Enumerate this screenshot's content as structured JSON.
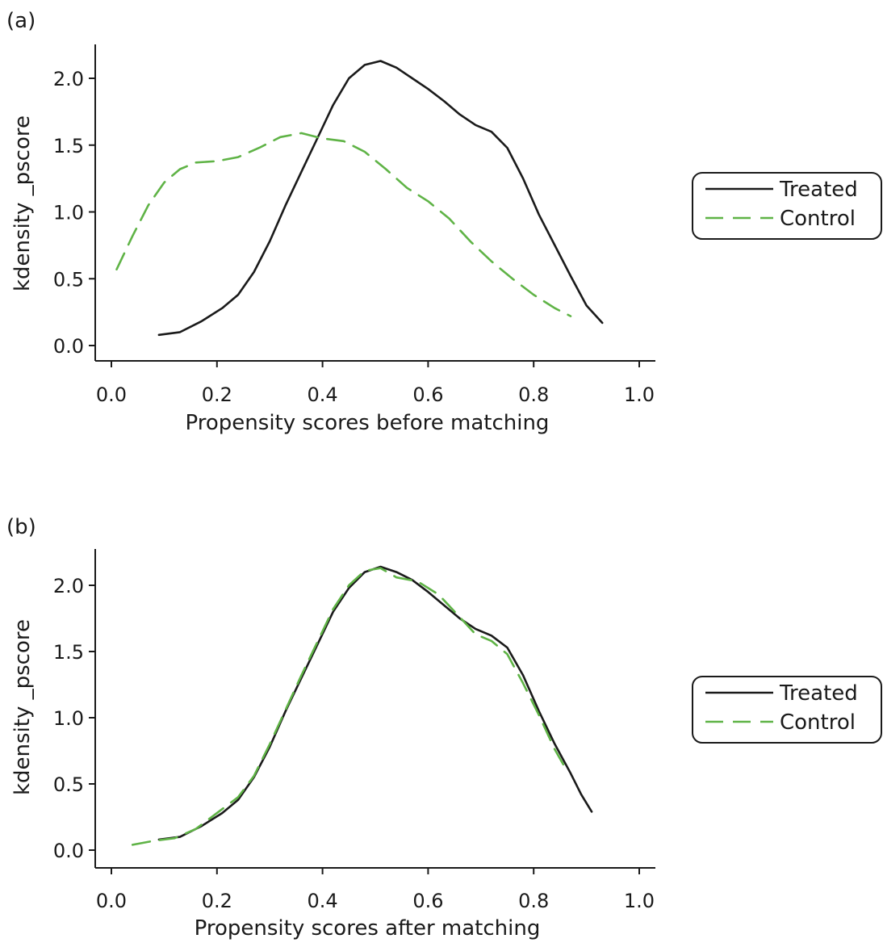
{
  "chart_data": [
    {
      "type": "line",
      "panel_label": "(a)",
      "xlabel": "Propensity scores before matching",
      "ylabel": "kdensity _pscore",
      "xlim": [
        0.0,
        1.0
      ],
      "ylim": [
        0.0,
        2.2
      ],
      "xticks": [
        "0.0",
        "0.2",
        "0.4",
        "0.6",
        "0.8",
        "1.0"
      ],
      "yticks": [
        "0.0",
        "0.5",
        "1.0",
        "1.5",
        "2.0"
      ],
      "legend_position": "right",
      "series": [
        {
          "name": "Treated",
          "color": "#1a1a1a",
          "dash": "solid",
          "points": [
            [
              0.09,
              0.08
            ],
            [
              0.13,
              0.1
            ],
            [
              0.17,
              0.18
            ],
            [
              0.21,
              0.28
            ],
            [
              0.24,
              0.38
            ],
            [
              0.27,
              0.55
            ],
            [
              0.3,
              0.78
            ],
            [
              0.33,
              1.05
            ],
            [
              0.36,
              1.3
            ],
            [
              0.39,
              1.55
            ],
            [
              0.42,
              1.8
            ],
            [
              0.45,
              2.0
            ],
            [
              0.48,
              2.1
            ],
            [
              0.51,
              2.13
            ],
            [
              0.54,
              2.08
            ],
            [
              0.57,
              2.0
            ],
            [
              0.6,
              1.92
            ],
            [
              0.63,
              1.83
            ],
            [
              0.66,
              1.73
            ],
            [
              0.69,
              1.65
            ],
            [
              0.72,
              1.6
            ],
            [
              0.75,
              1.48
            ],
            [
              0.78,
              1.25
            ],
            [
              0.81,
              0.98
            ],
            [
              0.84,
              0.75
            ],
            [
              0.87,
              0.52
            ],
            [
              0.9,
              0.3
            ],
            [
              0.93,
              0.17
            ]
          ]
        },
        {
          "name": "Control",
          "color": "#5fb346",
          "dash": "dashed",
          "points": [
            [
              0.01,
              0.57
            ],
            [
              0.04,
              0.82
            ],
            [
              0.07,
              1.05
            ],
            [
              0.1,
              1.22
            ],
            [
              0.13,
              1.32
            ],
            [
              0.16,
              1.37
            ],
            [
              0.2,
              1.38
            ],
            [
              0.24,
              1.41
            ],
            [
              0.28,
              1.48
            ],
            [
              0.32,
              1.56
            ],
            [
              0.36,
              1.59
            ],
            [
              0.4,
              1.55
            ],
            [
              0.44,
              1.53
            ],
            [
              0.48,
              1.45
            ],
            [
              0.52,
              1.32
            ],
            [
              0.56,
              1.18
            ],
            [
              0.6,
              1.08
            ],
            [
              0.64,
              0.95
            ],
            [
              0.68,
              0.78
            ],
            [
              0.72,
              0.63
            ],
            [
              0.76,
              0.5
            ],
            [
              0.8,
              0.38
            ],
            [
              0.84,
              0.28
            ],
            [
              0.87,
              0.22
            ]
          ]
        }
      ]
    },
    {
      "type": "line",
      "panel_label": "(b)",
      "xlabel": "Propensity scores after matching",
      "ylabel": "kdensity _pscore",
      "xlim": [
        0.0,
        1.0
      ],
      "ylim": [
        0.0,
        2.2
      ],
      "xticks": [
        "0.0",
        "0.2",
        "0.4",
        "0.6",
        "0.8",
        "1.0"
      ],
      "yticks": [
        "0.0",
        "0.5",
        "1.0",
        "1.5",
        "2.0"
      ],
      "legend_position": "right",
      "series": [
        {
          "name": "Treated",
          "color": "#1a1a1a",
          "dash": "solid",
          "points": [
            [
              0.09,
              0.08
            ],
            [
              0.13,
              0.1
            ],
            [
              0.17,
              0.18
            ],
            [
              0.21,
              0.28
            ],
            [
              0.24,
              0.38
            ],
            [
              0.27,
              0.55
            ],
            [
              0.3,
              0.78
            ],
            [
              0.33,
              1.05
            ],
            [
              0.36,
              1.3
            ],
            [
              0.39,
              1.55
            ],
            [
              0.42,
              1.8
            ],
            [
              0.45,
              1.98
            ],
            [
              0.48,
              2.1
            ],
            [
              0.51,
              2.14
            ],
            [
              0.54,
              2.1
            ],
            [
              0.57,
              2.04
            ],
            [
              0.6,
              1.95
            ],
            [
              0.63,
              1.85
            ],
            [
              0.66,
              1.75
            ],
            [
              0.69,
              1.67
            ],
            [
              0.72,
              1.62
            ],
            [
              0.75,
              1.53
            ],
            [
              0.78,
              1.32
            ],
            [
              0.81,
              1.05
            ],
            [
              0.84,
              0.8
            ],
            [
              0.87,
              0.58
            ],
            [
              0.89,
              0.42
            ],
            [
              0.91,
              0.29
            ]
          ]
        },
        {
          "name": "Control",
          "color": "#5fb346",
          "dash": "dashed",
          "points": [
            [
              0.04,
              0.04
            ],
            [
              0.08,
              0.07
            ],
            [
              0.12,
              0.09
            ],
            [
              0.16,
              0.16
            ],
            [
              0.2,
              0.28
            ],
            [
              0.24,
              0.4
            ],
            [
              0.27,
              0.56
            ],
            [
              0.3,
              0.8
            ],
            [
              0.33,
              1.06
            ],
            [
              0.36,
              1.32
            ],
            [
              0.39,
              1.57
            ],
            [
              0.42,
              1.82
            ],
            [
              0.45,
              2.0
            ],
            [
              0.48,
              2.11
            ],
            [
              0.51,
              2.13
            ],
            [
              0.54,
              2.06
            ],
            [
              0.58,
              2.03
            ],
            [
              0.62,
              1.93
            ],
            [
              0.66,
              1.76
            ],
            [
              0.69,
              1.63
            ],
            [
              0.72,
              1.58
            ],
            [
              0.75,
              1.48
            ],
            [
              0.78,
              1.26
            ],
            [
              0.81,
              1.02
            ],
            [
              0.84,
              0.76
            ],
            [
              0.86,
              0.62
            ]
          ]
        }
      ]
    }
  ]
}
